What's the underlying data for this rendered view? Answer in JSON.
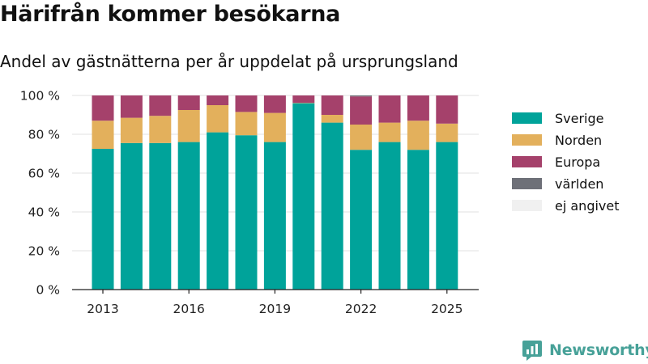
{
  "title": "Härifrån kommer besökarna",
  "subtitle": "Andel av gästnätterna per år uppdelat på ursprungsland",
  "brand": "Newsworthy",
  "chart_data": {
    "type": "bar",
    "stacked": true,
    "categories": [
      "2013",
      "2014",
      "2015",
      "2016",
      "2017",
      "2018",
      "2019",
      "2020",
      "2021",
      "2022",
      "2023",
      "2024",
      "2025"
    ],
    "x_ticks": [
      "2013",
      "2016",
      "2019",
      "2022",
      "2025"
    ],
    "y_ticks": [
      "0 %",
      "20 %",
      "40 %",
      "60 %",
      "80 %",
      "100 %"
    ],
    "ylim": [
      0,
      100
    ],
    "grid": true,
    "legend_position": "right",
    "series": [
      {
        "name": "Sverige",
        "color": "#00a39a",
        "values": [
          72.5,
          75.5,
          75.5,
          76,
          81,
          79.5,
          76,
          96,
          86,
          72,
          76,
          72,
          76
        ]
      },
      {
        "name": "Norden",
        "color": "#e3b05c",
        "values": [
          14.5,
          13,
          14,
          16.5,
          14,
          12,
          15,
          0.2,
          4,
          13,
          10,
          15,
          9.5
        ]
      },
      {
        "name": "Europa",
        "color": "#a5416b",
        "values": [
          13,
          11.5,
          10.5,
          7.5,
          5,
          8.5,
          9,
          3.8,
          10,
          14.5,
          14,
          13,
          14.5
        ]
      },
      {
        "name": "världen",
        "color": "#6e7078",
        "values": [
          0,
          0,
          0,
          0,
          0,
          0,
          0,
          0,
          0,
          0.5,
          0,
          0,
          0
        ]
      },
      {
        "name": "ej angivet",
        "color": "#f0f0f0",
        "values": [
          0,
          0,
          0,
          0,
          0,
          0,
          0,
          0,
          0,
          0,
          0,
          0,
          0
        ]
      }
    ]
  }
}
